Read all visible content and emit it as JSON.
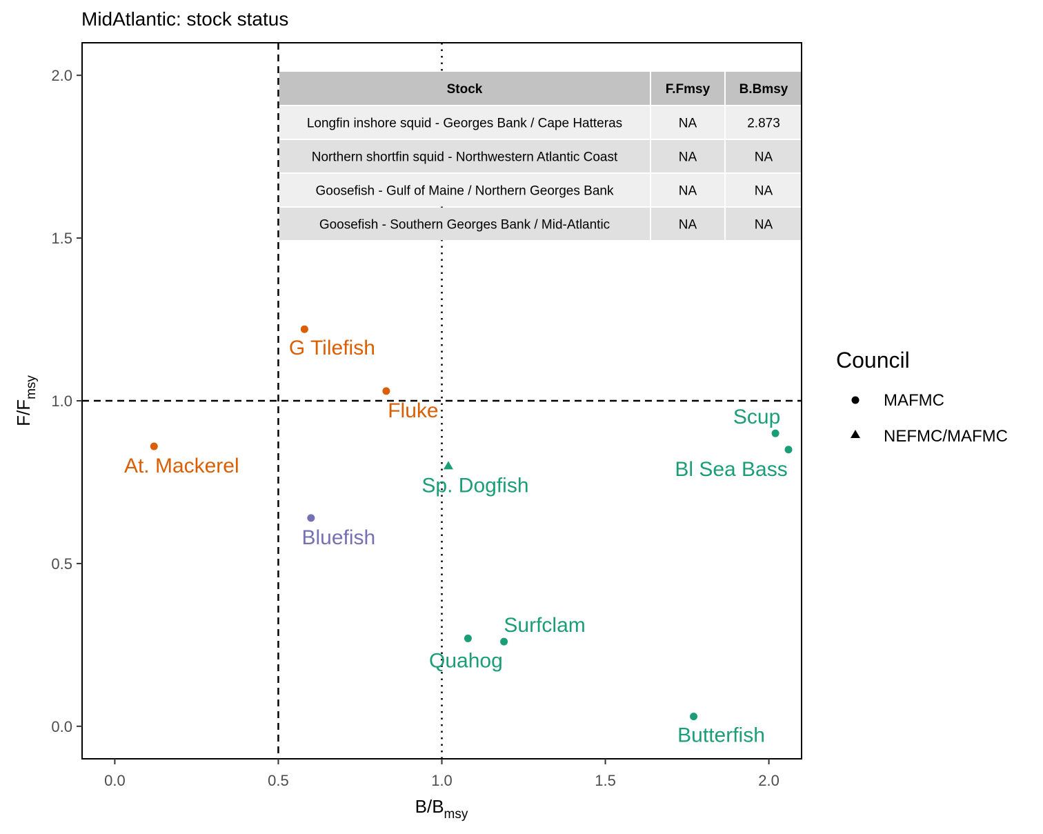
{
  "chart_data": {
    "type": "scatter",
    "title": "MidAtlantic: stock status",
    "xlabel": "B/B",
    "xlabel_sub": "msy",
    "ylabel": "F/F",
    "ylabel_sub": "msy",
    "xlim": [
      -0.1,
      2.1
    ],
    "ylim": [
      -0.1,
      2.1
    ],
    "x_ticks": [
      0.0,
      0.5,
      1.0,
      1.5,
      2.0
    ],
    "x_tick_labels": [
      "0.0",
      "0.5",
      "1.0",
      "1.5",
      "2.0"
    ],
    "y_ticks": [
      0.0,
      0.5,
      1.0,
      1.5,
      2.0
    ],
    "y_tick_labels": [
      "0.0",
      "0.5",
      "1.0",
      "1.5",
      "2.0"
    ],
    "grid": false,
    "reference_lines": [
      {
        "axis": "x",
        "value": 0.5,
        "style": "dashed"
      },
      {
        "axis": "x",
        "value": 1.0,
        "style": "dotted"
      },
      {
        "axis": "y",
        "value": 1.0,
        "style": "dashed"
      }
    ],
    "colors": {
      "orange": "#D95F02",
      "green": "#1B9E77",
      "purple": "#7570B3"
    },
    "points": [
      {
        "label": "G Tilefish",
        "x": 0.58,
        "y": 1.22,
        "council": "MAFMC",
        "color": "#D95F02"
      },
      {
        "label": "Fluke",
        "x": 0.83,
        "y": 1.03,
        "council": "MAFMC",
        "color": "#D95F02"
      },
      {
        "label": "At. Mackerel",
        "x": 0.12,
        "y": 0.86,
        "council": "MAFMC",
        "color": "#D95F02"
      },
      {
        "label": "Bluefish",
        "x": 0.6,
        "y": 0.64,
        "council": "MAFMC",
        "color": "#7570B3"
      },
      {
        "label": "Sp. Dogfish",
        "x": 1.02,
        "y": 0.8,
        "council": "NEFMC/MAFMC",
        "color": "#1B9E77"
      },
      {
        "label": "Scup",
        "x": 2.02,
        "y": 0.9,
        "council": "MAFMC",
        "color": "#1B9E77"
      },
      {
        "label": "Bl Sea Bass",
        "x": 2.06,
        "y": 0.85,
        "council": "MAFMC",
        "color": "#1B9E77"
      },
      {
        "label": "Surfclam",
        "x": 1.19,
        "y": 0.26,
        "council": "MAFMC",
        "color": "#1B9E77"
      },
      {
        "label": "Quahog",
        "x": 1.08,
        "y": 0.27,
        "council": "MAFMC",
        "color": "#1B9E77"
      },
      {
        "label": "Butterfish",
        "x": 1.77,
        "y": 0.03,
        "council": "MAFMC",
        "color": "#1B9E77"
      }
    ],
    "legend": {
      "title": "Council",
      "placement": "right",
      "entries": [
        {
          "label": "MAFMC",
          "shape": "circle"
        },
        {
          "label": "NEFMC/MAFMC",
          "shape": "triangle"
        }
      ]
    },
    "table": {
      "columns": [
        "Stock",
        "F.Fmsy",
        "B.Bmsy"
      ],
      "rows": [
        [
          "Longfin inshore squid - Georges Bank / Cape Hatteras",
          "NA",
          "2.873"
        ],
        [
          "Northern shortfin squid - Northwestern Atlantic Coast",
          "NA",
          "NA"
        ],
        [
          "Goosefish - Gulf of Maine / Northern Georges Bank",
          "NA",
          "NA"
        ],
        [
          "Goosefish - Southern Georges Bank / Mid-Atlantic",
          "NA",
          "NA"
        ]
      ],
      "header_color": "#C2C2C2",
      "row_colors": [
        "#EFEFEF",
        "#E0E0E0"
      ]
    }
  }
}
